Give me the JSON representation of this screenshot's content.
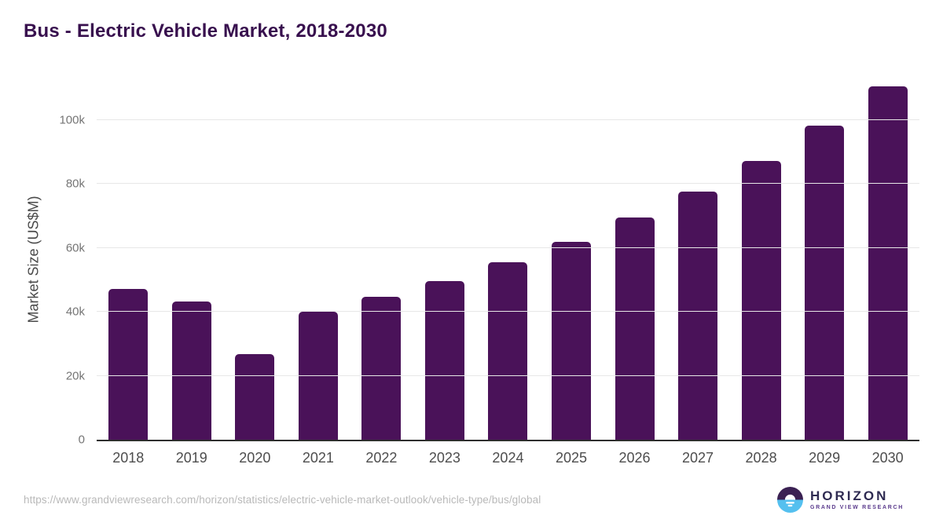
{
  "page": {
    "title": "Bus - Electric Vehicle Market, 2018-2030",
    "source_url": "https://www.grandviewresearch.com/horizon/statistics/electric-vehicle-market-outlook/vehicle-type/bus/global"
  },
  "logo": {
    "brand": "HORIZON",
    "tagline": "GRAND VIEW RESEARCH"
  },
  "chart_data": {
    "type": "bar",
    "title": "Bus - Electric Vehicle Market, 2018-2030",
    "xlabel": "",
    "ylabel": "Market Size (US$M)",
    "categories": [
      "2018",
      "2019",
      "2020",
      "2021",
      "2022",
      "2023",
      "2024",
      "2025",
      "2026",
      "2027",
      "2028",
      "2029",
      "2030"
    ],
    "values": [
      47200,
      43300,
      26800,
      40000,
      44700,
      49600,
      55500,
      61900,
      69500,
      77700,
      87300,
      98200,
      110500
    ],
    "ylim": [
      0,
      114000
    ],
    "yticks": [
      {
        "value": 0,
        "label": "0"
      },
      {
        "value": 20000,
        "label": "20k"
      },
      {
        "value": 40000,
        "label": "40k"
      },
      {
        "value": 60000,
        "label": "60k"
      },
      {
        "value": 80000,
        "label": "80k"
      },
      {
        "value": 100000,
        "label": "100k"
      }
    ],
    "grid": "horizontal",
    "legend_position": "none",
    "bar_color": "#4a1259"
  },
  "colors": {
    "title_text": "#38104e",
    "bar": "#4a1259",
    "axis_line": "#2e2e2e",
    "gridline": "#e7e7e7",
    "y_tick_text": "#757575",
    "x_tick_text": "#4d4d4d",
    "url_text": "#b9b9b9",
    "logo_dark_half": "#3b2153",
    "logo_blue_half": "#55c0ef",
    "logo_brand_text": "#2f2b52",
    "logo_tagline_text": "#5a3a8c"
  }
}
